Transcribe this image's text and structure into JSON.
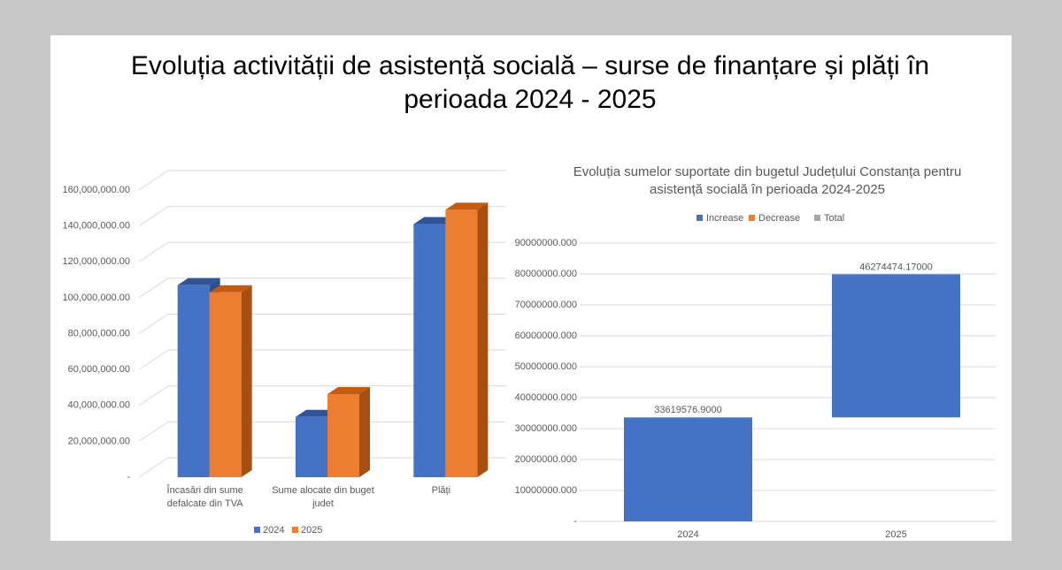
{
  "title": "Evoluția activității de asistență socială – surse de finanțare și plăți în perioada 2024 - 2025",
  "chart_data": [
    {
      "type": "bar",
      "three_d": true,
      "grid": true,
      "categories": [
        "Încasări din sume defalcate din TVA",
        "Sume alocate din buget judet",
        "Plăți"
      ],
      "series": [
        {
          "name": "2024",
          "color": "#4472c4",
          "values": [
            107000000,
            33619576.9,
            141000000
          ]
        },
        {
          "name": "2025",
          "color": "#ed7d31",
          "values": [
            103000000,
            46274474.17,
            149000000
          ]
        }
      ],
      "ylim": [
        0,
        160000000
      ],
      "yticks": [
        {
          "value": 0,
          "label": "-"
        },
        {
          "value": 20000000,
          "label": "20,000,000.00"
        },
        {
          "value": 40000000,
          "label": "40,000,000.00"
        },
        {
          "value": 60000000,
          "label": "60,000,000.00"
        },
        {
          "value": 80000000,
          "label": "80,000,000.00"
        },
        {
          "value": 100000000,
          "label": "100,000,000.00"
        },
        {
          "value": 120000000,
          "label": "120,000,000.00"
        },
        {
          "value": 140000000,
          "label": "140,000,000.00"
        },
        {
          "value": 160000000,
          "label": "160,000,000.00"
        }
      ],
      "legend": "bottom"
    },
    {
      "type": "waterfall",
      "grid": true,
      "title": "Evoluția sumelor suportate din bugetul Județului Constanța pentru asistență socială în perioada 2024-2025",
      "categories": [
        "2024",
        "2025"
      ],
      "values": [
        33619576.9,
        46274474.17
      ],
      "value_labels": [
        "33619576.9000",
        "46274474.17000"
      ],
      "legend_items": [
        {
          "name": "Increase",
          "color": "#4472c4"
        },
        {
          "name": "Decrease",
          "color": "#ed7d31"
        },
        {
          "name": "Total",
          "color": "#a5a5a5"
        }
      ],
      "ylim": [
        0,
        90000000
      ],
      "yticks": [
        {
          "value": 0,
          "label": "-"
        },
        {
          "value": 10000000,
          "label": "10000000.000"
        },
        {
          "value": 20000000,
          "label": "20000000.000"
        },
        {
          "value": 30000000,
          "label": "30000000.000"
        },
        {
          "value": 40000000,
          "label": "40000000.000"
        },
        {
          "value": 50000000,
          "label": "50000000.000"
        },
        {
          "value": 60000000,
          "label": "60000000.000"
        },
        {
          "value": 70000000,
          "label": "70000000.000"
        },
        {
          "value": 80000000,
          "label": "80000000.000"
        },
        {
          "value": 90000000,
          "label": "90000000.000"
        }
      ],
      "legend": "top"
    }
  ]
}
